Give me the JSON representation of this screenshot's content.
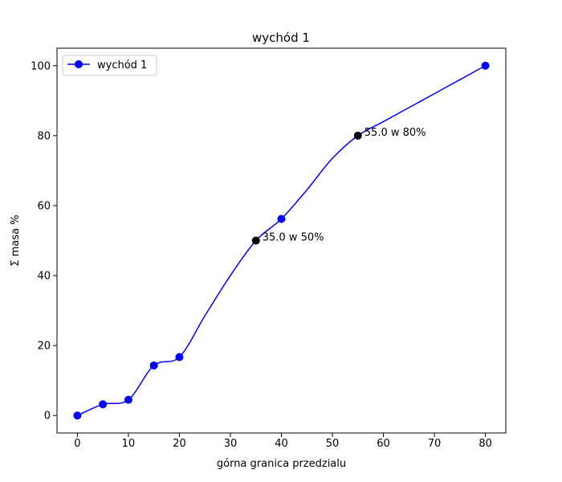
{
  "chart_data": {
    "type": "line",
    "title": "wychód 1",
    "xlabel": "górna granica przedzialu",
    "ylabel": "Σ masa %",
    "xlim": [
      -4,
      84
    ],
    "ylim": [
      -5,
      105
    ],
    "xticks": [
      0,
      10,
      20,
      30,
      40,
      50,
      60,
      70,
      80
    ],
    "yticks": [
      0,
      20,
      40,
      60,
      80,
      100
    ],
    "grid": false,
    "legend_position": "top-left",
    "series": [
      {
        "name": "wychód 1",
        "color": "#0000ff",
        "marker": "circle",
        "x": [
          0,
          5,
          10,
          15,
          20,
          40,
          80
        ],
        "y": [
          0,
          3.2,
          4.5,
          14.3,
          16.7,
          56.2,
          100
        ]
      }
    ],
    "curve": {
      "color": "#0000ff",
      "x": [
        0,
        5,
        10,
        15,
        20,
        25,
        30,
        35,
        40,
        45,
        50,
        55,
        60,
        65,
        70,
        75,
        80
      ],
      "y": [
        0,
        3.2,
        4.5,
        14.3,
        16.7,
        28.5,
        40.0,
        50.0,
        56.2,
        64.5,
        73.5,
        80.0,
        84.0,
        88.0,
        92.0,
        96.0,
        100
      ]
    },
    "annotations": [
      {
        "x": 35,
        "y": 50,
        "label": "35.0 w 50%",
        "color": "#000000"
      },
      {
        "x": 55,
        "y": 80,
        "label": "55.0 w 80%",
        "color": "#000000"
      }
    ]
  }
}
